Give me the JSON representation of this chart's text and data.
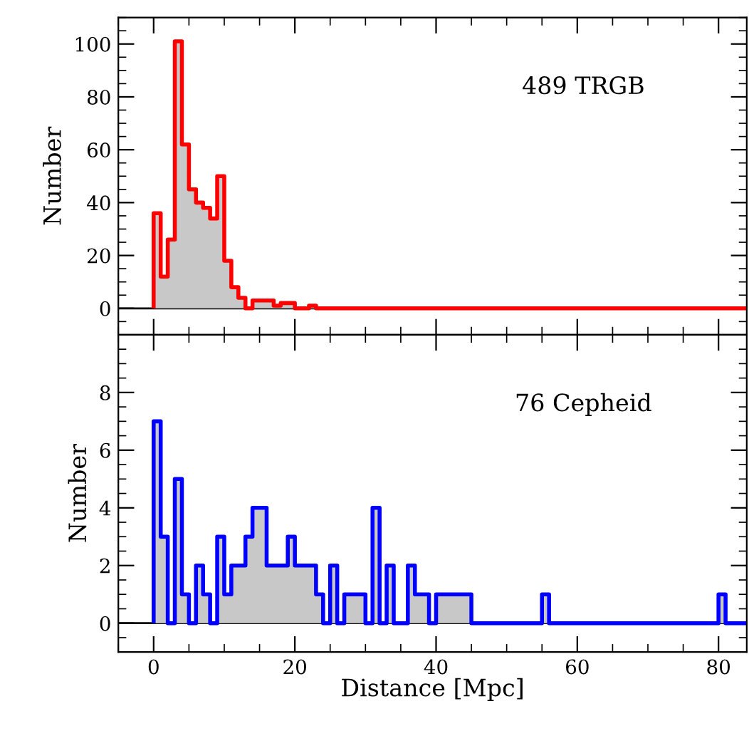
{
  "chart_data": [
    {
      "type": "histogram",
      "ylabel": "Number",
      "annotations": [
        "489 TRGB"
      ],
      "color": "#ff0000",
      "tick_labels": "y",
      "bins": [
        0,
        1,
        2,
        3,
        4,
        5,
        6,
        7,
        8,
        9,
        10,
        11,
        12,
        13,
        14,
        15,
        16,
        17,
        18,
        19,
        20,
        21,
        22,
        23,
        24,
        25,
        26,
        27,
        28,
        29,
        30,
        31,
        32,
        33,
        34,
        35,
        36,
        37,
        38,
        39,
        40,
        41,
        42,
        43,
        44,
        45,
        46,
        47,
        48,
        49,
        50,
        51,
        52,
        53,
        54,
        55,
        56,
        57,
        58,
        59,
        60,
        61,
        62,
        63,
        64,
        65,
        66,
        67,
        68,
        69,
        70,
        71,
        72,
        73,
        74,
        75,
        76,
        77,
        78,
        79,
        80,
        81,
        82,
        83,
        84
      ],
      "values": [
        36,
        12,
        26,
        101,
        62,
        45,
        40,
        38,
        34,
        50,
        18,
        8,
        4,
        0,
        3,
        3,
        3,
        1,
        2,
        2,
        0,
        0,
        1,
        0,
        0,
        0,
        0,
        0,
        0,
        0,
        0,
        0,
        0,
        0,
        0,
        0,
        0,
        0,
        0,
        0,
        0,
        0,
        0,
        0,
        0,
        0,
        0,
        0,
        0,
        0,
        0,
        0,
        0,
        0,
        0,
        0,
        0,
        0,
        0,
        0,
        0,
        0,
        0,
        0,
        0,
        0,
        0,
        0,
        0,
        0,
        0,
        0,
        0,
        0,
        0,
        0,
        0,
        0,
        0,
        0,
        0,
        0,
        0,
        0
      ],
      "ref_lines": [
        {
          "axis": "y",
          "value": 0,
          "color": "#000000"
        }
      ],
      "xlim": [
        -5,
        84
      ],
      "xticks": [
        0,
        20,
        40,
        60,
        80
      ],
      "ylim": [
        -10,
        110
      ],
      "yticks": [
        0,
        20,
        40,
        60,
        80,
        100
      ]
    },
    {
      "type": "histogram",
      "xlabel": "Distance [Mpc]",
      "ylabel": "Number",
      "annotations": [
        "76 Cepheid"
      ],
      "color": "#0000ff",
      "bins": [
        0,
        1,
        2,
        3,
        4,
        5,
        6,
        7,
        8,
        9,
        10,
        11,
        12,
        13,
        14,
        15,
        16,
        17,
        18,
        19,
        20,
        21,
        22,
        23,
        24,
        25,
        26,
        27,
        28,
        29,
        30,
        31,
        32,
        33,
        34,
        35,
        36,
        37,
        38,
        39,
        40,
        41,
        42,
        43,
        44,
        45,
        46,
        47,
        48,
        49,
        50,
        51,
        52,
        53,
        54,
        55,
        56,
        57,
        58,
        59,
        60,
        61,
        62,
        63,
        64,
        65,
        66,
        67,
        68,
        69,
        70,
        71,
        72,
        73,
        74,
        75,
        76,
        77,
        78,
        79,
        80,
        81,
        82,
        83,
        84
      ],
      "values": [
        7,
        3,
        0,
        5,
        1,
        0,
        2,
        1,
        0,
        3,
        1,
        2,
        2,
        3,
        4,
        4,
        2,
        2,
        2,
        3,
        2,
        2,
        2,
        1,
        0,
        2,
        0,
        1,
        1,
        1,
        0,
        4,
        0,
        2,
        0,
        0,
        2,
        1,
        1,
        0,
        1,
        1,
        1,
        1,
        1,
        0,
        0,
        0,
        0,
        0,
        0,
        0,
        0,
        0,
        0,
        1,
        0,
        0,
        0,
        0,
        0,
        0,
        0,
        0,
        0,
        0,
        0,
        0,
        0,
        0,
        0,
        0,
        0,
        0,
        0,
        0,
        0,
        0,
        0,
        0,
        1,
        0,
        0,
        0
      ],
      "ref_lines": [
        {
          "axis": "y",
          "value": 0,
          "color": "#000000"
        }
      ],
      "xlim": [
        -5,
        84
      ],
      "xticks": [
        0,
        20,
        40,
        60,
        80
      ],
      "ylim": [
        -1,
        10
      ],
      "yticks": [
        0,
        2,
        4,
        6,
        8
      ]
    }
  ]
}
